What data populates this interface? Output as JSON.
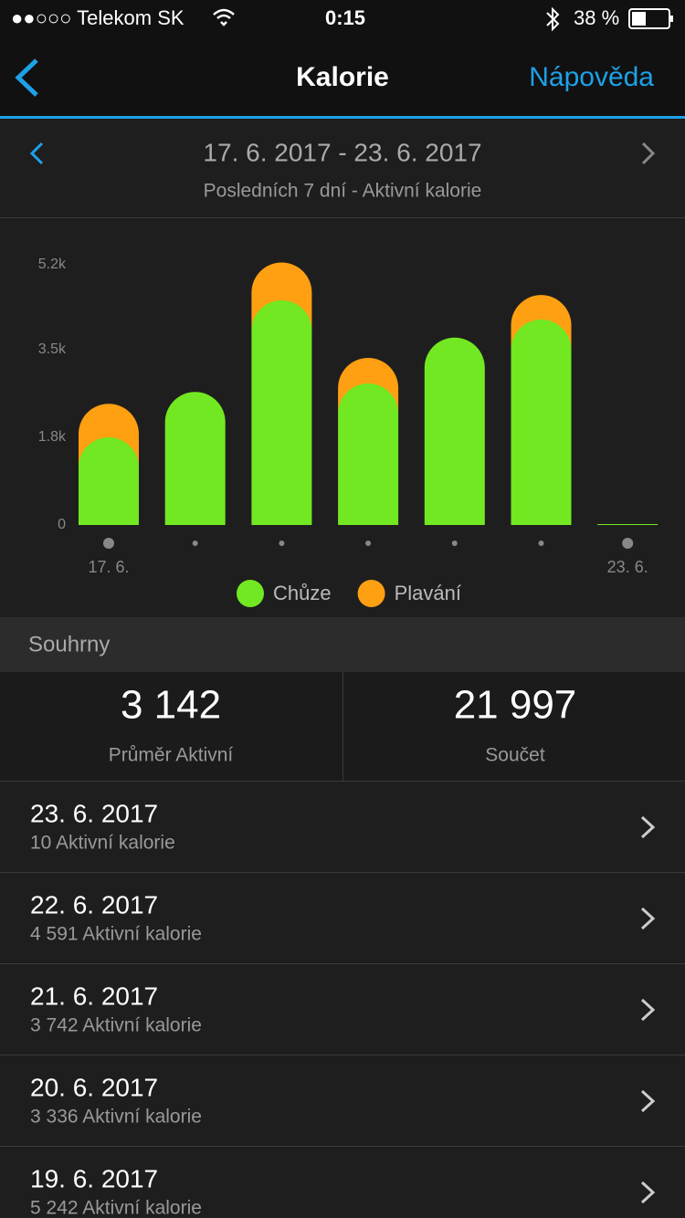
{
  "status_bar": {
    "carrier": "●●○○○ Telekom SK",
    "time": "0:15",
    "battery": "38 %"
  },
  "nav": {
    "title": "Kalorie",
    "help": "Nápověda"
  },
  "header": {
    "range": "17. 6. 2017 - 23. 6. 2017",
    "subtitle": "Posledních 7 dní - Aktivní kalorie"
  },
  "chart_data": {
    "type": "bar",
    "stacked": true,
    "categories": [
      "17. 6.",
      null,
      null,
      null,
      null,
      null,
      "23. 6."
    ],
    "series": [
      {
        "name": "Chůze",
        "color": "#72e822",
        "values": [
          1750,
          2656,
          4484,
          2825,
          3742,
          4101,
          10
        ]
      },
      {
        "name": "Plavání",
        "color": "#ff9f12",
        "values": [
          670,
          0,
          758,
          511,
          0,
          490,
          0
        ]
      }
    ],
    "ylim": [
      0,
      5250
    ],
    "yticks": [
      0,
      {
        "value": 1750,
        "label": "1.8k"
      },
      {
        "value": 3500,
        "label": "3.5k"
      },
      {
        "value": 5200,
        "label": "5.2k"
      }
    ],
    "grid": false,
    "legend": "bottom"
  },
  "summary": {
    "title": "Souhrny",
    "average": {
      "value": "3 142",
      "label": "Průměr Aktivní"
    },
    "total": {
      "value": "21 997",
      "label": "Součet"
    }
  },
  "list": [
    {
      "date": "23. 6. 2017",
      "detail": "10 Aktivní kalorie"
    },
    {
      "date": "22. 6. 2017",
      "detail": "4 591 Aktivní kalorie"
    },
    {
      "date": "21. 6. 2017",
      "detail": "3 742 Aktivní kalorie"
    },
    {
      "date": "20. 6. 2017",
      "detail": "3 336 Aktivní kalorie"
    },
    {
      "date": "19. 6. 2017",
      "detail": "5 242 Aktivní kalorie"
    }
  ]
}
